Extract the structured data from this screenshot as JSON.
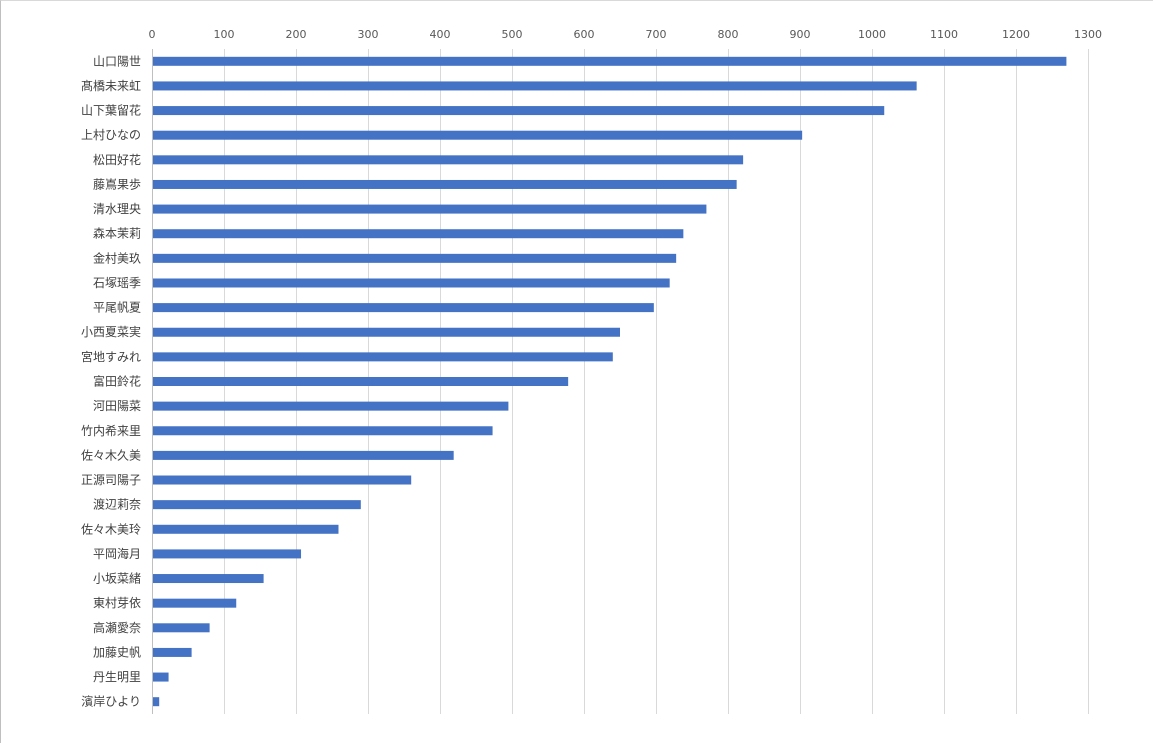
{
  "chart_data": {
    "type": "bar",
    "orientation": "horizontal",
    "title": "",
    "xlabel": "",
    "ylabel": "",
    "xlim": [
      0,
      1300
    ],
    "x_ticks": [
      0,
      100,
      200,
      300,
      400,
      500,
      600,
      700,
      800,
      900,
      1000,
      1100,
      1200,
      1300
    ],
    "x_axis_position": "top",
    "grid": true,
    "legend": "none",
    "categories": [
      "山口陽世",
      "髙橋未来虹",
      "山下葉留花",
      "上村ひなの",
      "松田好花",
      "藤嶌果歩",
      "清水理央",
      "森本茉莉",
      "金村美玖",
      "石塚瑶季",
      "平尾帆夏",
      "小西夏菜実",
      "宮地すみれ",
      "富田鈴花",
      "河田陽菜",
      "竹内希来里",
      "佐々木久美",
      "正源司陽子",
      "渡辺莉奈",
      "佐々木美玲",
      "平岡海月",
      "小坂菜緒",
      "東村芽依",
      "高瀬愛奈",
      "加藤史帆",
      "丹生明里",
      "濱岸ひより"
    ],
    "values": [
      1270,
      1062,
      1017,
      903,
      821,
      812,
      770,
      738,
      728,
      719,
      697,
      650,
      640,
      578,
      495,
      473,
      419,
      360,
      290,
      259,
      207,
      155,
      117,
      80,
      55,
      23,
      10
    ],
    "bar_color": "#4472c4",
    "grid_color": "#d9d9d9"
  }
}
